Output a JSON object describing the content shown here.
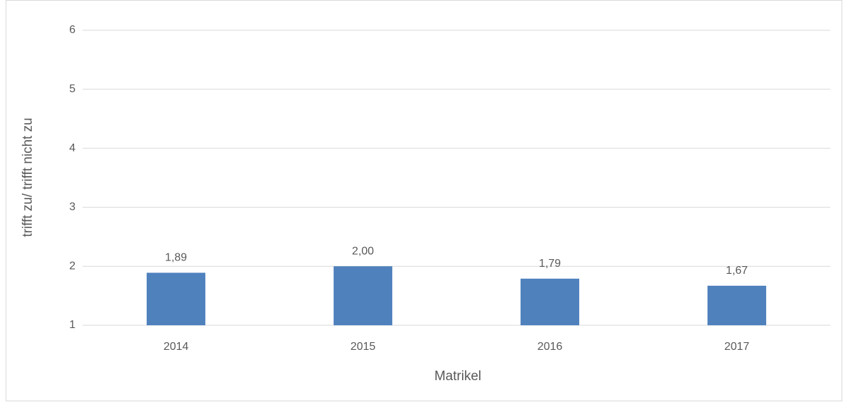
{
  "chart_data": {
    "type": "bar",
    "categories": [
      "2014",
      "2015",
      "2016",
      "2017"
    ],
    "values": [
      1.89,
      2.0,
      1.79,
      1.67
    ],
    "value_labels": [
      "1,89",
      "2,00",
      "1,79",
      "1,67"
    ],
    "color": "#4f81bd",
    "xlabel": "Matrikel",
    "ylabel": "trifft zu/ trifft nicht zu",
    "ylim": [
      1,
      6
    ],
    "yticks": [
      1,
      2,
      3,
      4,
      5,
      6
    ],
    "grid": true
  }
}
